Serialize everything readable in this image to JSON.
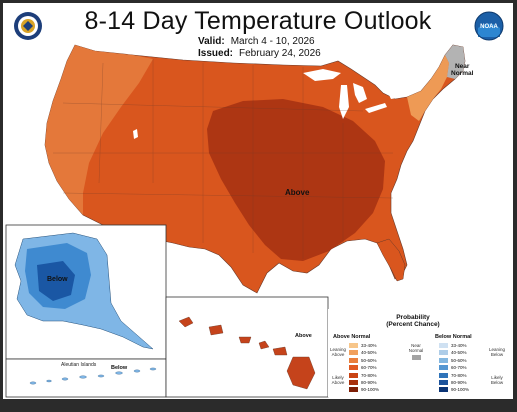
{
  "header": {
    "title": "8-14 Day Temperature Outlook",
    "valid_label": "Valid:",
    "valid_value": "March 4 - 10, 2026",
    "issued_label": "Issued:",
    "issued_value": "February 24, 2026"
  },
  "logos": {
    "left": "doc-seal-icon",
    "right": "noaa-logo-icon",
    "right_text": "NOAA"
  },
  "map_labels": {
    "above_main": "Above",
    "near_normal": [
      "Near",
      "Normal"
    ],
    "alaska_below": "Below",
    "hawaii_above": "Above",
    "aleutian": "Aleutian Islands",
    "aleutian_below": "Below"
  },
  "legend": {
    "title_line1": "Probability",
    "title_line2": "(Percent Chance)",
    "above_header": "Above Normal",
    "below_header": "Below Normal",
    "near_header": [
      "Near",
      "Normal"
    ],
    "above_side_top": [
      "Leaning",
      "Above"
    ],
    "above_side_bottom": [
      "Likely",
      "Above"
    ],
    "below_side_top": [
      "Leaning",
      "Below"
    ],
    "below_side_bottom": [
      "Likely",
      "Below"
    ],
    "ranges": [
      "33-40%",
      "40-50%",
      "50-60%",
      "60-70%",
      "70-80%",
      "80-90%",
      "90-100%"
    ],
    "above_colors": [
      "#f7c68a",
      "#f1a05d",
      "#ea7f3c",
      "#e05a22",
      "#c94414",
      "#a8300c",
      "#7d1e06"
    ],
    "below_colors": [
      "#cfe1f2",
      "#aecde8",
      "#83b7e0",
      "#5597d2",
      "#2f74ba",
      "#1b529b",
      "#0b3475"
    ],
    "near_color": "#a3a3a3"
  },
  "colors": {
    "above_light": "#e57a3c",
    "above_mid": "#d9561e",
    "above_strong": "#c7421a",
    "above_core": "#a93312",
    "near_normal": "#b3b3b3",
    "lean_ne": "#ee9a55",
    "alaska_light": "#7fb6e6",
    "alaska_mid": "#3f8ad0",
    "alaska_dark": "#1a57a4",
    "hawaii": "#c5431b"
  }
}
